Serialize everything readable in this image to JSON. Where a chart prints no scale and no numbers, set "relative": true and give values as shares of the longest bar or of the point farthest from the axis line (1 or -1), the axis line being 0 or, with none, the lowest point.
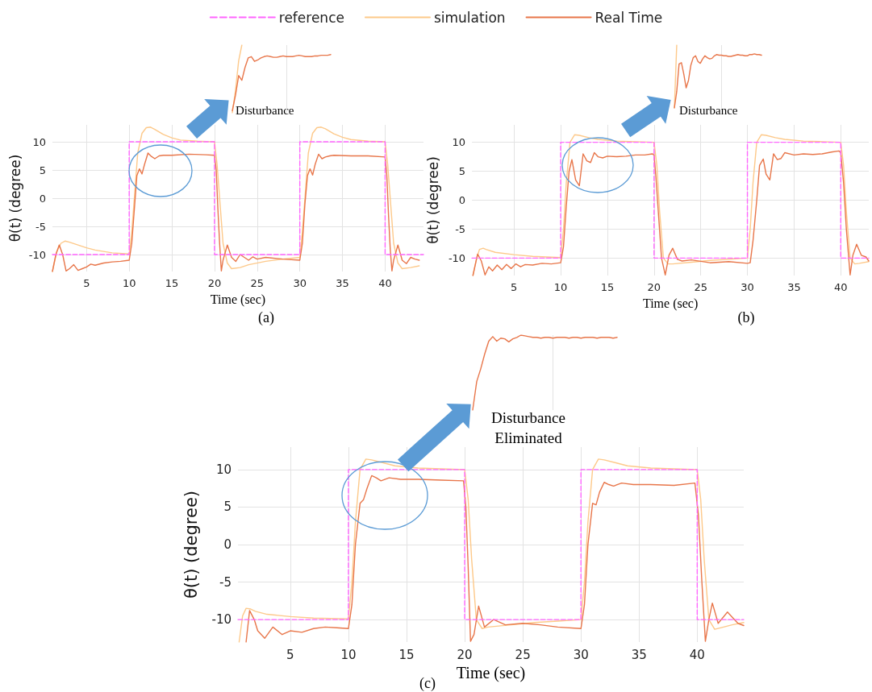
{
  "chart_data": [
    {
      "type": "line",
      "xlabel": "Time (sec)",
      "ylabel": "θ(t) (degree)",
      "annotations": [
        "Disturbance",
        "(a)"
      ],
      "xlim": [
        1,
        44.5
      ],
      "ylim": [
        -13,
        13
      ],
      "xticks": [
        5,
        10,
        15,
        20,
        25,
        30,
        35,
        40
      ],
      "yticks": [
        -10,
        -5,
        0,
        5,
        10
      ],
      "grid": true,
      "legend": "top",
      "marker": "none",
      "series": [
        {
          "name": "reference",
          "color": "#ff66ff",
          "line_style": "dashed",
          "x": [
            1,
            10,
            10,
            20,
            20,
            30,
            30,
            40,
            40,
            44.5
          ],
          "values": [
            -10,
            -10,
            10,
            10,
            -10,
            -10,
            10,
            10,
            -10,
            -10
          ]
        },
        {
          "name": "simulation",
          "color": "#fdc98a",
          "line_style": "solid",
          "x": [
            1,
            1.5,
            2,
            2.5,
            3,
            4,
            5,
            6,
            8,
            10,
            10.3,
            10.6,
            11,
            11.5,
            12,
            12.5,
            13,
            14,
            15,
            16,
            18,
            20,
            20.3,
            20.6,
            21,
            21.5,
            22,
            23,
            24,
            26,
            28,
            30,
            30.3,
            30.6,
            31,
            31.5,
            32,
            32.5,
            33,
            34,
            35,
            36,
            38,
            40,
            40.3,
            40.6,
            41,
            41.5,
            42,
            43,
            44
          ],
          "values": [
            -13,
            -9.5,
            -8,
            -7.6,
            -7.8,
            -8.3,
            -8.8,
            -9.2,
            -9.7,
            -9.9,
            -6,
            0,
            8,
            11.5,
            12.5,
            12.6,
            12.2,
            11.3,
            10.7,
            10.3,
            10.1,
            10,
            6,
            0,
            -8,
            -11.5,
            -12.5,
            -12.3,
            -11.8,
            -11.2,
            -10.8,
            -10.5,
            -6,
            0,
            8,
            11.5,
            12.5,
            12.6,
            12.3,
            11.4,
            10.8,
            10.4,
            10.1,
            10,
            6,
            0,
            -8,
            -11.5,
            -12.5,
            -12.3,
            -12
          ]
        },
        {
          "name": "Real Time",
          "color": "#e8764a",
          "line_style": "solid",
          "x": [
            1,
            1.4,
            1.8,
            2.2,
            2.6,
            3,
            3.5,
            4,
            4.5,
            5,
            5.5,
            6,
            7,
            8,
            9,
            10,
            10.3,
            10.6,
            10.9,
            11.2,
            11.5,
            11.8,
            12.2,
            12.6,
            13,
            13.5,
            14,
            15,
            17,
            19,
            20,
            20.2,
            20.4,
            20.6,
            20.8,
            21,
            21.5,
            22,
            22.5,
            23,
            23.5,
            24,
            24.5,
            25,
            26,
            28,
            30,
            30.3,
            30.6,
            30.9,
            31.2,
            31.5,
            31.8,
            32.2,
            32.6,
            33,
            33.5,
            34,
            36,
            38,
            40,
            40.2,
            40.4,
            40.6,
            40.8,
            41,
            41.5,
            42,
            42.5,
            43,
            43.5,
            44
          ],
          "values": [
            -13,
            -10,
            -8.3,
            -10,
            -12.9,
            -12.5,
            -11.8,
            -12.8,
            -12.5,
            -12.2,
            -11.7,
            -11.9,
            -11.5,
            -11.3,
            -11.2,
            -11,
            -8,
            -2,
            4,
            5.2,
            4.3,
            6,
            8,
            7.4,
            7,
            7.5,
            7.6,
            7.6,
            7.8,
            7.7,
            7.6,
            5,
            -2,
            -8,
            -12.9,
            -11,
            -8.3,
            -10.5,
            -11.2,
            -10,
            -10.5,
            -11,
            -10.4,
            -10.8,
            -10.5,
            -10.8,
            -11,
            -8,
            -1,
            4,
            5.2,
            4.1,
            6,
            7.8,
            7,
            7.3,
            7.5,
            7.6,
            7.5,
            7.5,
            7.3,
            4,
            -3,
            -9,
            -12.9,
            -11,
            -8.3,
            -11,
            -11.6,
            -10.5,
            -10.8,
            -11
          ]
        }
      ]
    },
    {
      "type": "line",
      "xlabel": "Time (sec)",
      "ylabel": "θ(t) (degree)",
      "annotations": [
        "Disturbance",
        "(b)"
      ],
      "xlim": [
        0.5,
        43
      ],
      "ylim": [
        -13,
        13
      ],
      "xticks": [
        5,
        10,
        15,
        20,
        25,
        30,
        35,
        40
      ],
      "yticks": [
        -10,
        -5,
        0,
        5,
        10
      ],
      "grid": true,
      "marker": "none",
      "series": [
        {
          "color": "#ff66ff",
          "line_style": "dashed",
          "x": [
            0.5,
            10,
            10,
            20,
            20,
            30,
            30,
            40,
            40,
            43
          ],
          "values": [
            -10,
            -10,
            10,
            10,
            -10,
            -10,
            10,
            10,
            -10,
            -10
          ]
        },
        {
          "color": "#fdc98a",
          "line_style": "solid",
          "x": [
            0.6,
            1,
            1.3,
            1.7,
            2,
            3,
            5,
            7,
            10,
            10.3,
            10.6,
            11,
            11.5,
            12,
            13,
            14,
            16,
            18,
            20,
            20.3,
            20.6,
            21,
            21.5,
            22,
            24,
            26,
            28,
            30,
            30.3,
            30.6,
            31,
            31.5,
            32,
            33,
            34,
            36,
            38,
            40,
            40.3,
            40.6,
            41,
            41.5,
            42,
            43
          ],
          "values": [
            -13,
            -10,
            -8.5,
            -8.3,
            -8.5,
            -9,
            -9.4,
            -9.7,
            -9.9,
            -5,
            3,
            10,
            11.3,
            11.2,
            10.8,
            10.5,
            10.2,
            10.1,
            10,
            6,
            -2,
            -10,
            -11,
            -11,
            -10.7,
            -10.4,
            -10.2,
            -10,
            -5,
            3,
            10,
            11.3,
            11.2,
            10.8,
            10.5,
            10.2,
            10.1,
            10,
            6,
            -2,
            -10,
            -11,
            -10.9,
            -10.6
          ]
        },
        {
          "color": "#e8764a",
          "line_style": "solid",
          "x": [
            0.6,
            1.1,
            1.5,
            1.9,
            2.3,
            2.7,
            3.2,
            3.7,
            4.2,
            4.7,
            5.2,
            5.7,
            6.2,
            7,
            8,
            9,
            10,
            10.3,
            10.6,
            10.9,
            11.2,
            11.6,
            12,
            12.4,
            12.8,
            13.2,
            13.6,
            14,
            14.5,
            15,
            16,
            17,
            18,
            19,
            19.8,
            20,
            20.2,
            20.5,
            20.8,
            21.2,
            21.6,
            22,
            22.5,
            23,
            24,
            26,
            28,
            30,
            30.3,
            30.6,
            31,
            31.3,
            31.7,
            32,
            32.4,
            32.8,
            33.2,
            33.6,
            34,
            35,
            36,
            37,
            38,
            39,
            39.8,
            40,
            40.3,
            40.6,
            41,
            41.3,
            41.7,
            42.2,
            42.7,
            43
          ],
          "values": [
            -13,
            -9.3,
            -10.5,
            -12.9,
            -11.5,
            -12.2,
            -11.2,
            -12,
            -11.1,
            -11.8,
            -11,
            -11.5,
            -11.1,
            -11.2,
            -10.9,
            -11,
            -10.8,
            -8,
            -1,
            5,
            7,
            3.5,
            2.5,
            8,
            6.8,
            6.5,
            8.2,
            7.5,
            7.3,
            7.6,
            7.5,
            7.6,
            7.8,
            7.8,
            8,
            7.8,
            4,
            -3,
            -10,
            -12.9,
            -9.5,
            -8.3,
            -10.2,
            -10.5,
            -10.3,
            -10.8,
            -10.6,
            -10.9,
            -10.8,
            -7,
            0,
            6,
            7.1,
            4.5,
            3.5,
            8,
            7,
            7.2,
            8.2,
            7.8,
            8,
            7.9,
            8,
            8.3,
            8.5,
            8.2,
            3,
            -5,
            -12.9,
            -9.5,
            -7.6,
            -9.5,
            -9.8,
            -10.5
          ]
        }
      ]
    },
    {
      "type": "line",
      "xlabel": "Time (sec)",
      "ylabel": "θ(t) (degree)",
      "annotations": [
        "Disturbance\nEliminated",
        "(c)"
      ],
      "xlim": [
        0.5,
        44
      ],
      "ylim": [
        -13,
        13
      ],
      "xticks": [
        5,
        10,
        15,
        20,
        25,
        30,
        35,
        40
      ],
      "yticks": [
        -10,
        -5,
        0,
        5,
        10
      ],
      "grid": true,
      "marker": "none",
      "series": [
        {
          "color": "#ff66ff",
          "line_style": "dashed",
          "x": [
            0.5,
            10,
            10,
            20,
            20,
            30,
            30,
            40,
            40,
            44
          ],
          "values": [
            -10,
            -10,
            10,
            10,
            -10,
            -10,
            10,
            10,
            -10,
            -10
          ]
        },
        {
          "color": "#fdc98a",
          "line_style": "solid",
          "x": [
            0.6,
            0.9,
            1.2,
            1.6,
            2,
            3,
            5,
            7,
            10,
            10.3,
            10.6,
            11,
            11.5,
            12,
            13,
            14,
            16,
            18,
            20,
            20.3,
            20.6,
            21,
            21.5,
            22,
            24,
            26,
            28,
            30,
            30.3,
            30.6,
            31,
            31.5,
            32,
            33,
            34,
            36,
            38,
            40,
            40.3,
            40.6,
            41,
            41.5,
            42,
            43,
            44
          ],
          "values": [
            -13,
            -9.5,
            -8.5,
            -8.6,
            -8.9,
            -9.3,
            -9.6,
            -9.8,
            -9.9,
            -5,
            3,
            10,
            11.4,
            11.3,
            10.9,
            10.5,
            10.2,
            10.1,
            10,
            6,
            -2,
            -10,
            -11.2,
            -11,
            -10.7,
            -10.4,
            -10.2,
            -10,
            -5,
            3,
            10,
            11.4,
            11.3,
            10.9,
            10.5,
            10.2,
            10.1,
            10,
            6,
            -2,
            -10,
            -11.3,
            -11.1,
            -10.7,
            -10.4
          ]
        },
        {
          "color": "#e8764a",
          "line_style": "solid",
          "x": [
            1.2,
            1.5,
            1.9,
            2.2,
            2.8,
            3.5,
            4.3,
            5,
            6,
            7,
            8,
            9,
            10,
            10.3,
            10.6,
            11,
            11.3,
            11.6,
            12,
            12.4,
            12.8,
            13.5,
            14.5,
            16,
            18,
            19.9,
            20.1,
            20.3,
            20.5,
            20.8,
            21.2,
            21.7,
            22.5,
            23.5,
            25,
            26.5,
            28,
            30,
            30.3,
            30.6,
            31,
            31.3,
            31.6,
            32,
            32.4,
            32.8,
            33.5,
            34.5,
            36,
            38,
            39.8,
            40.1,
            40.4,
            40.7,
            41,
            41.3,
            41.8,
            42.6,
            43.5,
            44
          ],
          "values": [
            -13,
            -8.8,
            -10,
            -11.5,
            -12.5,
            -11,
            -12,
            -11.5,
            -11.7,
            -11.2,
            -11,
            -11.1,
            -11.2,
            -8,
            0,
            5.5,
            6,
            7.5,
            9.2,
            8.9,
            8.5,
            8.9,
            8.7,
            8.7,
            8.6,
            8.5,
            5,
            -3,
            -12.9,
            -12,
            -8.2,
            -11,
            -10,
            -10.7,
            -10.5,
            -10.7,
            -11,
            -11.2,
            -8,
            0,
            5.5,
            5.3,
            7,
            8.3,
            8,
            7.8,
            8.2,
            8,
            8,
            7.9,
            8.2,
            4,
            -5,
            -12.9,
            -10,
            -7.8,
            -10.5,
            -9,
            -10.5,
            -10.8
          ]
        }
      ]
    },
    {
      "type": "line",
      "relative": true,
      "grid": true,
      "marker": "none",
      "categories": [
        null,
        null,
        null,
        null,
        null,
        null,
        null,
        null,
        null,
        null,
        null,
        null,
        null,
        null,
        null,
        null,
        null,
        null,
        null,
        null,
        null,
        null,
        null,
        null,
        null,
        null,
        null,
        null,
        null,
        null,
        null,
        null
      ],
      "series": [
        {
          "color": "#fdc98a",
          "values": [
            0,
            0.33,
            0.77,
            1,
            null,
            null,
            null,
            null,
            null,
            null,
            null,
            null,
            null,
            null,
            null,
            null,
            null,
            null,
            null,
            null,
            null,
            null,
            null,
            null,
            null,
            null,
            null,
            null,
            null,
            null,
            null,
            null
          ]
        },
        {
          "color": "#e8764a",
          "values": [
            0.03,
            0.26,
            0.55,
            0.48,
            0.67,
            0.81,
            0.83,
            0.76,
            0.78,
            0.81,
            0.83,
            0.84,
            0.83,
            0.82,
            0.82,
            0.83,
            0.84,
            0.83,
            0.83,
            0.83,
            0.84,
            0.85,
            0.84,
            0.83,
            0.83,
            0.83,
            0.84,
            0.84,
            0.85,
            0.85,
            0.85,
            0.86
          ]
        }
      ]
    },
    {
      "type": "line",
      "relative": true,
      "grid": true,
      "marker": "none",
      "categories": [
        null,
        null,
        null,
        null,
        null,
        null,
        null,
        null,
        null,
        null,
        null,
        null,
        null,
        null,
        null,
        null,
        null,
        null,
        null,
        null,
        null,
        null,
        null,
        null,
        null,
        null,
        null,
        null,
        null,
        null,
        null,
        null,
        null,
        null,
        null,
        null,
        null,
        null
      ],
      "series": [
        {
          "color": "#fdc98a",
          "values": [
            0,
            1,
            null,
            null,
            null,
            null,
            null,
            null,
            null,
            null,
            null,
            null,
            null,
            null,
            null,
            null,
            null,
            null,
            null,
            null,
            null,
            null,
            null,
            null,
            null,
            null,
            null,
            null,
            null,
            null,
            null,
            null,
            null,
            null,
            null,
            null,
            null,
            null
          ]
        },
        {
          "color": "#e8764a",
          "values": [
            0,
            0.26,
            0.7,
            0.72,
            0.54,
            0.32,
            0.44,
            0.68,
            0.8,
            0.83,
            0.74,
            0.71,
            0.78,
            0.83,
            0.8,
            0.78,
            0.79,
            0.83,
            0.85,
            0.84,
            0.84,
            0.83,
            0.83,
            0.82,
            0.82,
            0.83,
            0.84,
            0.85,
            0.84,
            0.84,
            0.83,
            0.83,
            0.85,
            0.85,
            0.86,
            0.85,
            0.85,
            0.84
          ]
        }
      ]
    },
    {
      "type": "line",
      "relative": true,
      "grid": true,
      "marker": "none",
      "categories": [
        null,
        null,
        null,
        null,
        null,
        null,
        null,
        null,
        null,
        null,
        null,
        null,
        null,
        null,
        null,
        null,
        null,
        null,
        null,
        null,
        null,
        null,
        null,
        null,
        null,
        null,
        null,
        null,
        null,
        null,
        null,
        null,
        null,
        null,
        null,
        null,
        null
      ],
      "series": [
        {
          "color": "#e8764a",
          "values": [
            0,
            0.38,
            0.55,
            0.75,
            0.92,
            0.98,
            0.92,
            0.96,
            0.95,
            0.91,
            0.95,
            0.97,
            1,
            0.99,
            0.98,
            0.97,
            0.97,
            0.96,
            0.97,
            0.97,
            0.96,
            0.97,
            0.97,
            0.97,
            0.96,
            0.97,
            0.97,
            0.96,
            0.97,
            0.97,
            0.97,
            0.96,
            0.97,
            0.97,
            0.97,
            0.96,
            0.97
          ]
        }
      ]
    }
  ]
}
